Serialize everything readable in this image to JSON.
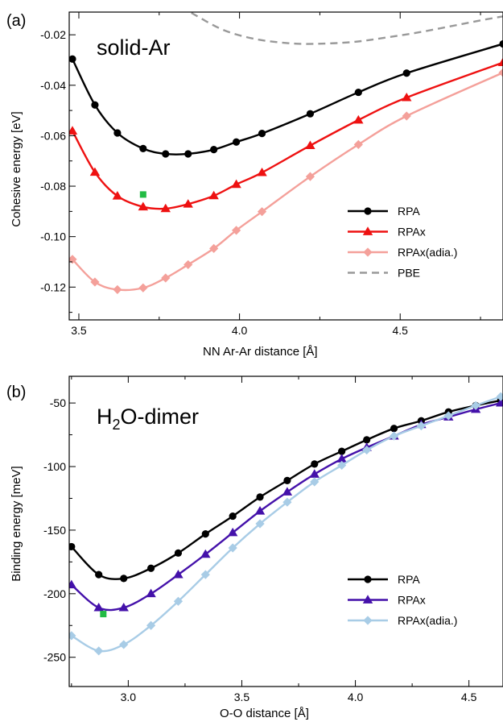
{
  "chart_data": [
    {
      "type": "line",
      "panel_label": "(a)",
      "annotation": "solid-Ar",
      "xlabel": "NN Ar-Ar distance [Å]",
      "ylabel": "Cohesive energy [eV]",
      "xlim": [
        3.47,
        4.82
      ],
      "ylim": [
        -0.133,
        -0.011
      ],
      "xticks": [
        3.5,
        4.0,
        4.5
      ],
      "xtick_labels": [
        "3.5",
        "4.0",
        "4.5"
      ],
      "yticks": [
        -0.12,
        -0.1,
        -0.08,
        -0.06,
        -0.04,
        -0.02
      ],
      "ytick_labels": [
        "-0.12",
        "-0.10",
        "-0.08",
        "-0.06",
        "-0.04",
        "-0.02"
      ],
      "grid": false,
      "legend_position": "lower-right",
      "series": [
        {
          "name": "RPA",
          "color": "#000000",
          "marker": "circle",
          "dashed": false,
          "x": [
            3.48,
            3.55,
            3.62,
            3.7,
            3.77,
            3.84,
            3.92,
            3.99,
            4.07,
            4.22,
            4.37,
            4.52,
            4.82
          ],
          "y": [
            -0.0296,
            -0.0478,
            -0.0589,
            -0.0651,
            -0.0672,
            -0.0672,
            -0.0655,
            -0.0625,
            -0.0591,
            -0.0513,
            -0.0428,
            -0.0352,
            -0.0236
          ]
        },
        {
          "name": "RPAx",
          "color": "#ee1111",
          "marker": "triangle",
          "dashed": false,
          "x": [
            3.48,
            3.55,
            3.62,
            3.7,
            3.77,
            3.84,
            3.92,
            3.99,
            4.07,
            4.22,
            4.37,
            4.52,
            4.82
          ],
          "y": [
            -0.0581,
            -0.0745,
            -0.0839,
            -0.0882,
            -0.0889,
            -0.0871,
            -0.0838,
            -0.0793,
            -0.0746,
            -0.0639,
            -0.0538,
            -0.0449,
            -0.031
          ]
        },
        {
          "name": "RPAx(adia.)",
          "color": "#f4a09a",
          "marker": "diamond",
          "dashed": false,
          "x": [
            3.48,
            3.55,
            3.62,
            3.7,
            3.77,
            3.84,
            3.92,
            3.99,
            4.07,
            4.22,
            4.37,
            4.52,
            4.82
          ],
          "y": [
            -0.109,
            -0.118,
            -0.121,
            -0.1203,
            -0.1164,
            -0.1111,
            -0.1047,
            -0.0975,
            -0.0901,
            -0.0762,
            -0.0635,
            -0.0522,
            -0.035
          ]
        },
        {
          "name": "PBE",
          "color": "#999999",
          "marker": "none",
          "dashed": true,
          "x": [
            3.85,
            3.95,
            4.05,
            4.15,
            4.23,
            4.35,
            4.45,
            4.55,
            4.65,
            4.75,
            4.82
          ],
          "y": [
            -0.0113,
            -0.0181,
            -0.0217,
            -0.0233,
            -0.0236,
            -0.0229,
            -0.0212,
            -0.0192,
            -0.0168,
            -0.0143,
            -0.0127
          ]
        }
      ],
      "extra_points": [
        {
          "x": 3.7,
          "y": -0.0833,
          "color": "#22bb44",
          "marker": "square"
        }
      ]
    },
    {
      "type": "line",
      "panel_label": "(b)",
      "annotation": "H₂O-dimer",
      "xlabel": "O-O distance [Å]",
      "ylabel": "Binding energy [meV]",
      "xlim": [
        2.74,
        4.65
      ],
      "ylim": [
        -273,
        -29
      ],
      "xticks": [
        3.0,
        3.5,
        4.0,
        4.5
      ],
      "xtick_labels": [
        "3.0",
        "3.5",
        "4.0",
        "4.5"
      ],
      "yticks": [
        -250,
        -200,
        -150,
        -100,
        -50
      ],
      "ytick_labels": [
        "-250",
        "-200",
        "-150",
        "-100",
        "-50"
      ],
      "grid": false,
      "legend_position": "lower-right",
      "series": [
        {
          "name": "RPA",
          "color": "#000000",
          "marker": "circle",
          "dashed": false,
          "x": [
            2.75,
            2.87,
            2.98,
            3.1,
            3.22,
            3.34,
            3.46,
            3.58,
            3.7,
            3.82,
            3.94,
            4.05,
            4.17,
            4.29,
            4.41,
            4.53,
            4.64
          ],
          "y": [
            -163,
            -185,
            -188,
            -180,
            -168,
            -153,
            -139,
            -124,
            -111,
            -98,
            -88,
            -79,
            -70,
            -64,
            -57,
            -52,
            -48
          ]
        },
        {
          "name": "RPAx",
          "color": "#4411aa",
          "marker": "triangle",
          "dashed": false,
          "x": [
            2.75,
            2.87,
            2.98,
            3.1,
            3.22,
            3.34,
            3.46,
            3.58,
            3.7,
            3.82,
            3.94,
            4.05,
            4.17,
            4.29,
            4.41,
            4.53,
            4.64
          ],
          "y": [
            -193,
            -211,
            -211,
            -200,
            -185,
            -169,
            -152,
            -135,
            -120,
            -106,
            -94,
            -85,
            -76,
            -67,
            -61,
            -55,
            -50
          ]
        },
        {
          "name": "RPAx(adia.)",
          "color": "#a8cce6",
          "marker": "diamond",
          "dashed": false,
          "x": [
            2.75,
            2.87,
            2.98,
            3.1,
            3.22,
            3.34,
            3.46,
            3.58,
            3.7,
            3.82,
            3.94,
            4.05,
            4.17,
            4.29,
            4.41,
            4.53,
            4.64
          ],
          "y": [
            -233,
            -245,
            -240,
            -225,
            -206,
            -185,
            -164,
            -145,
            -128,
            -112,
            -99,
            -87,
            -76,
            -68,
            -60,
            -52,
            -45
          ]
        }
      ],
      "extra_points": [
        {
          "x": 2.89,
          "y": -216,
          "color": "#22bb44",
          "marker": "square"
        }
      ]
    }
  ]
}
